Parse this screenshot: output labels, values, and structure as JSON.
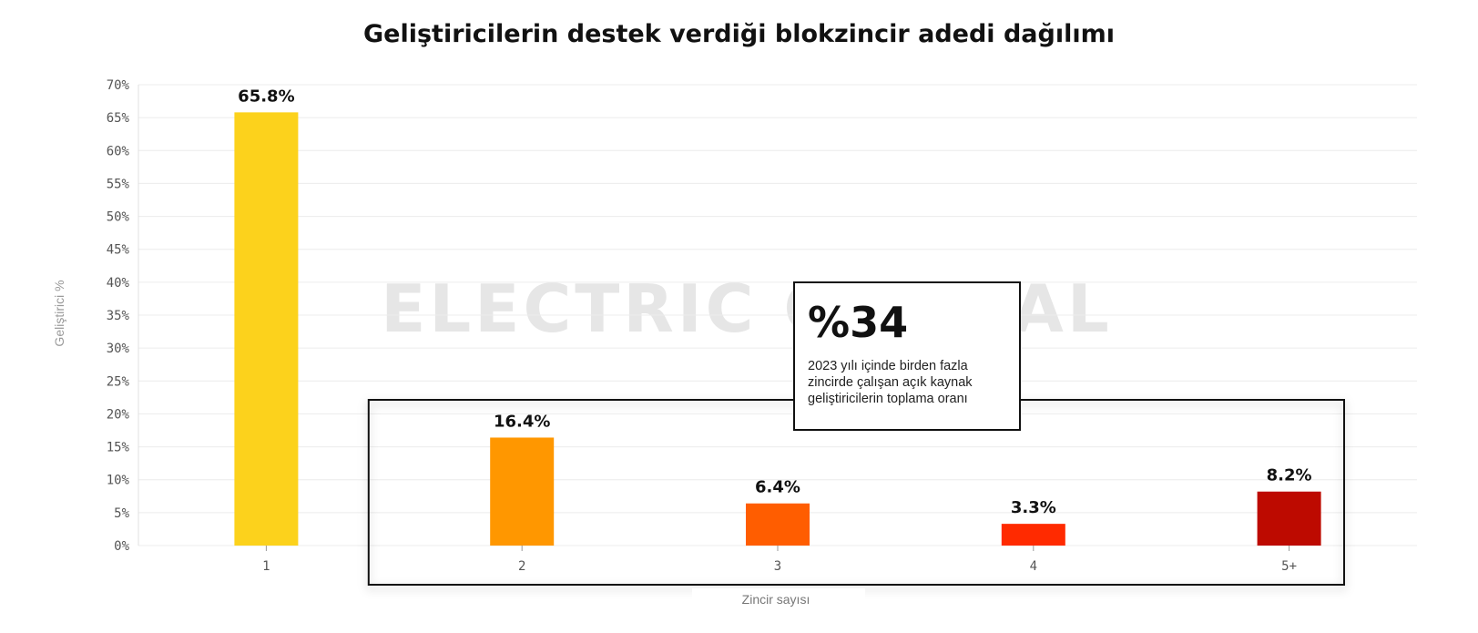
{
  "chart_data": {
    "type": "bar",
    "title": "Geliştiricilerin destek verdiği blokzincir adedi dağılımı",
    "xlabel": "Zincir sayısı",
    "ylabel": "Geliştirici %",
    "categories": [
      "1",
      "2",
      "3",
      "4",
      "5+"
    ],
    "values": [
      65.8,
      16.4,
      6.4,
      3.3,
      8.2
    ],
    "data_labels": [
      "65.8%",
      "16.4%",
      "6.4%",
      "3.3%",
      "8.2%"
    ],
    "colors": [
      "#fcd21c",
      "#ff9700",
      "#ff5d00",
      "#ff2a00",
      "#bd0a00"
    ],
    "ylim": [
      0,
      70
    ],
    "yticks": [
      "0%",
      "5%",
      "10%",
      "15%",
      "20%",
      "25%",
      "30%",
      "35%",
      "40%",
      "45%",
      "50%",
      "55%",
      "60%",
      "65%",
      "70%"
    ],
    "grid": true,
    "legend": "none"
  },
  "watermark": "ELECTRIC CAPITAL",
  "callout": {
    "value": "%34",
    "text": "2023 yılı içinde birden fazla zincirde çalışan açık kaynak geliştiricilerin toplama oranı"
  }
}
